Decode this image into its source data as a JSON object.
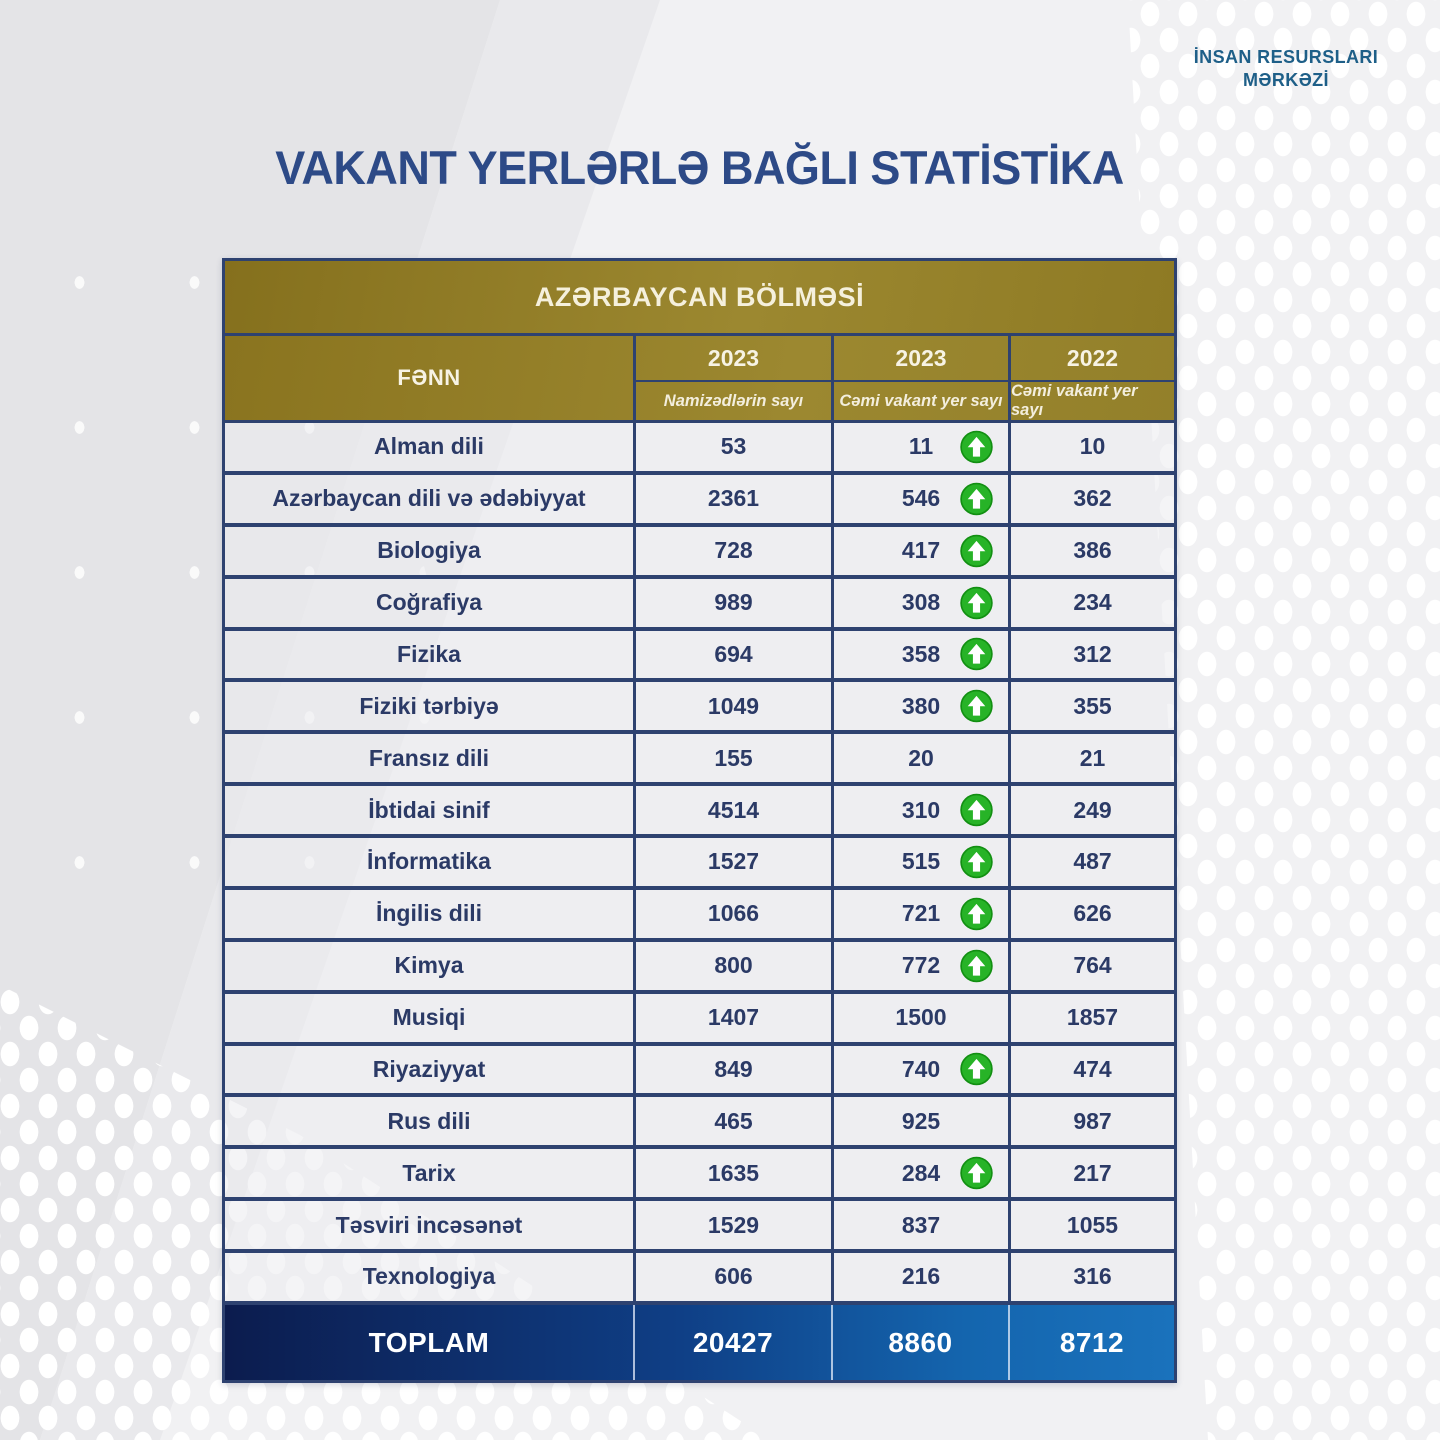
{
  "logo": {
    "line1": "İNSAN RESURSLARI",
    "line2": "MƏRKƏZİ"
  },
  "title": "VAKANT YERLƏRLƏ BAĞLI STATİSTİKA",
  "table": {
    "section_header": "AZƏRBAYCAN BÖLMƏSİ",
    "columns": {
      "subject": "FƏNN",
      "col1_year": "2023",
      "col1_label": "Namizədlərin sayı",
      "col2_year": "2023",
      "col2_label": "Cəmi vakant yer sayı",
      "col3_year": "2022",
      "col3_label": "Cəmi vakant yer sayı"
    },
    "rows": [
      {
        "subject": "Alman dili",
        "candidates_2023": "53",
        "vacant_2023": "11",
        "up": true,
        "vacant_2022": "10"
      },
      {
        "subject": "Azərbaycan dili və ədəbiyyat",
        "candidates_2023": "2361",
        "vacant_2023": "546",
        "up": true,
        "vacant_2022": "362"
      },
      {
        "subject": "Biologiya",
        "candidates_2023": "728",
        "vacant_2023": "417",
        "up": true,
        "vacant_2022": "386"
      },
      {
        "subject": "Coğrafiya",
        "candidates_2023": "989",
        "vacant_2023": "308",
        "up": true,
        "vacant_2022": "234"
      },
      {
        "subject": "Fizika",
        "candidates_2023": "694",
        "vacant_2023": "358",
        "up": true,
        "vacant_2022": "312"
      },
      {
        "subject": "Fiziki tərbiyə",
        "candidates_2023": "1049",
        "vacant_2023": "380",
        "up": true,
        "vacant_2022": "355"
      },
      {
        "subject": "Fransız dili",
        "candidates_2023": "155",
        "vacant_2023": "20",
        "up": false,
        "vacant_2022": "21"
      },
      {
        "subject": "İbtidai sinif",
        "candidates_2023": "4514",
        "vacant_2023": "310",
        "up": true,
        "vacant_2022": "249"
      },
      {
        "subject": "İnformatika",
        "candidates_2023": "1527",
        "vacant_2023": "515",
        "up": true,
        "vacant_2022": "487"
      },
      {
        "subject": "İngilis dili",
        "candidates_2023": "1066",
        "vacant_2023": "721",
        "up": true,
        "vacant_2022": "626"
      },
      {
        "subject": "Kimya",
        "candidates_2023": "800",
        "vacant_2023": "772",
        "up": true,
        "vacant_2022": "764"
      },
      {
        "subject": "Musiqi",
        "candidates_2023": "1407",
        "vacant_2023": "1500",
        "up": false,
        "vacant_2022": "1857"
      },
      {
        "subject": "Riyaziyyat",
        "candidates_2023": "849",
        "vacant_2023": "740",
        "up": true,
        "vacant_2022": "474"
      },
      {
        "subject": "Rus dili",
        "candidates_2023": "465",
        "vacant_2023": "925",
        "up": false,
        "vacant_2022": "987"
      },
      {
        "subject": "Tarix",
        "candidates_2023": "1635",
        "vacant_2023": "284",
        "up": true,
        "vacant_2022": "217"
      },
      {
        "subject": "Təsviri incəsənət",
        "candidates_2023": "1529",
        "vacant_2023": "837",
        "up": false,
        "vacant_2022": "1055"
      },
      {
        "subject": "Texnologiya",
        "candidates_2023": "606",
        "vacant_2023": "216",
        "up": false,
        "vacant_2022": "316"
      }
    ],
    "total": {
      "label": "TOPLAM",
      "candidates_2023": "20427",
      "vacant_2023": "8860",
      "vacant_2022": "8712"
    }
  },
  "icons": {
    "up_arrow": "green circle with white up arrow"
  },
  "colors": {
    "title_blue": "#2d4a87",
    "logo_blue": "#1e5f88",
    "header_gold": "#9c8830",
    "border_navy": "#2e4270",
    "cell_text_navy": "#2b3a66",
    "total_gradient_start": "#0c1c4e",
    "total_gradient_end": "#1a72bc",
    "up_arrow_green": "#27b327"
  },
  "chart_data": {
    "type": "table",
    "title": "VAKANT YERLƏRLƏ BAĞLI STATİSTİKA",
    "subtitle": "AZƏRBAYCAN BÖLMƏSİ",
    "columns": [
      "FƏNN",
      "2023 Namizədlərin sayı",
      "2023 Cəmi vakant yer sayı",
      "2022 Cəmi vakant yer sayı"
    ],
    "categories": [
      "Alman dili",
      "Azərbaycan dili və ədəbiyyat",
      "Biologiya",
      "Coğrafiya",
      "Fizika",
      "Fiziki tərbiyə",
      "Fransız dili",
      "İbtidai sinif",
      "İnformatika",
      "İngilis dili",
      "Kimya",
      "Musiqi",
      "Riyaziyyat",
      "Rus dili",
      "Tarix",
      "Təsviri incəsənət",
      "Texnologiya"
    ],
    "series": [
      {
        "name": "Namizədlərin sayı (2023)",
        "values": [
          53,
          2361,
          728,
          989,
          694,
          1049,
          155,
          4514,
          1527,
          1066,
          800,
          1407,
          849,
          465,
          1635,
          1529,
          606
        ]
      },
      {
        "name": "Cəmi vakant yer sayı (2023)",
        "values": [
          11,
          546,
          417,
          308,
          358,
          380,
          20,
          310,
          515,
          721,
          772,
          1500,
          740,
          925,
          284,
          837,
          216
        ]
      },
      {
        "name": "Cəmi vakant yer sayı (2022)",
        "values": [
          10,
          362,
          386,
          234,
          312,
          355,
          21,
          249,
          487,
          626,
          764,
          1857,
          474,
          987,
          217,
          1055,
          316
        ]
      }
    ],
    "increase_marker_2023": [
      true,
      true,
      true,
      true,
      true,
      true,
      false,
      true,
      true,
      true,
      true,
      false,
      true,
      false,
      true,
      false,
      false
    ],
    "totals": {
      "label": "TOPLAM",
      "values": [
        20427,
        8860,
        8712
      ]
    }
  }
}
